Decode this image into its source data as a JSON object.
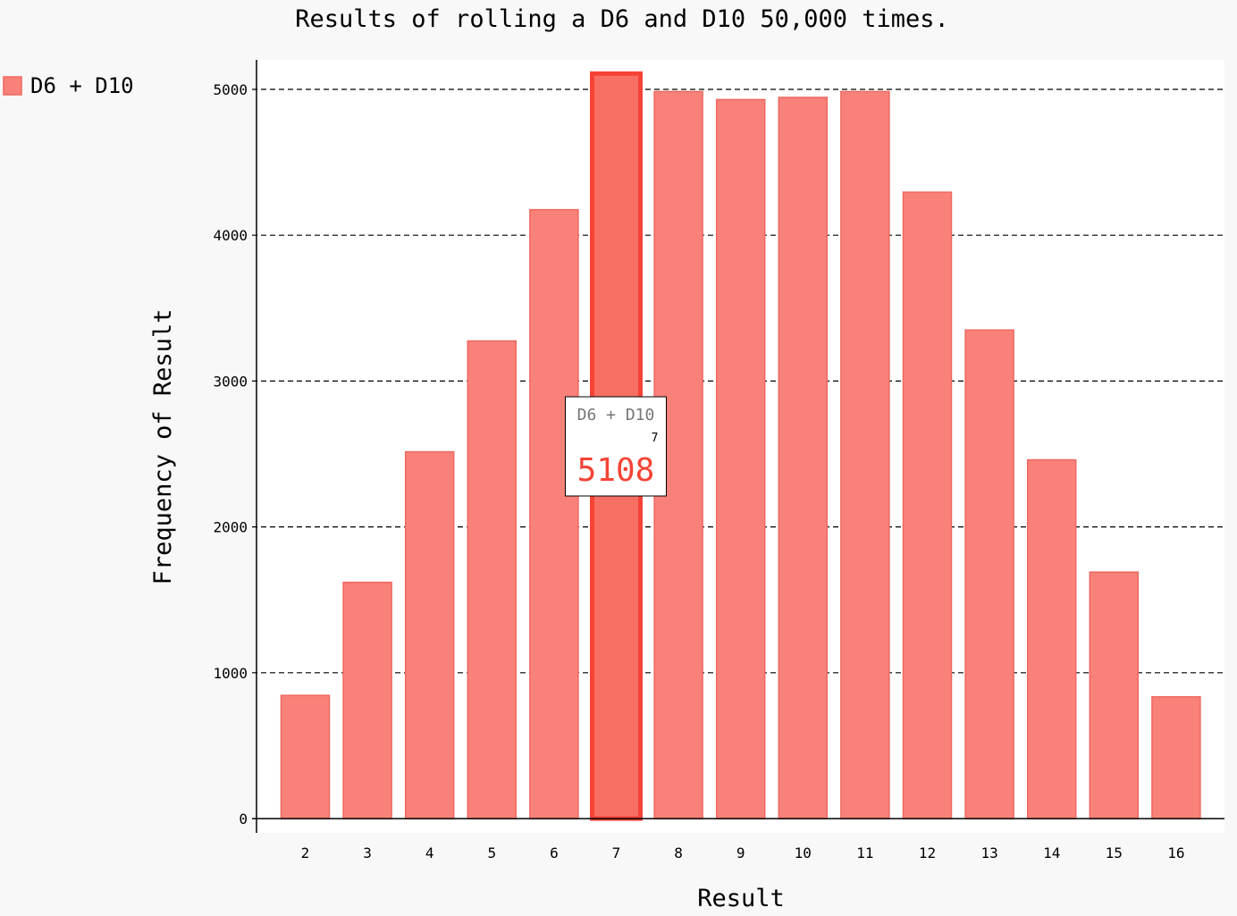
{
  "chart_data": {
    "type": "bar",
    "title": "Results of rolling a D6 and D10 50,000 times.",
    "xlabel": "Result",
    "ylabel": "Frequency of Result",
    "categories": [
      "2",
      "3",
      "4",
      "5",
      "6",
      "7",
      "8",
      "9",
      "10",
      "11",
      "12",
      "13",
      "14",
      "15",
      "16"
    ],
    "series": [
      {
        "name": "D6 + D10",
        "color": "#f8827a",
        "values": [
          845,
          1620,
          2515,
          3275,
          4175,
          5108,
          4985,
          4930,
          4945,
          4985,
          4295,
          3350,
          2460,
          1690,
          835
        ]
      }
    ],
    "ylim": [
      0,
      5200
    ],
    "yticks": [
      0,
      1000,
      2000,
      3000,
      4000,
      5000
    ],
    "grid": "horizontal-dashed",
    "legend": "top-left",
    "highlight": {
      "category": "7",
      "series": "D6 + D10",
      "value": "5108",
      "color": "#f44336"
    }
  }
}
